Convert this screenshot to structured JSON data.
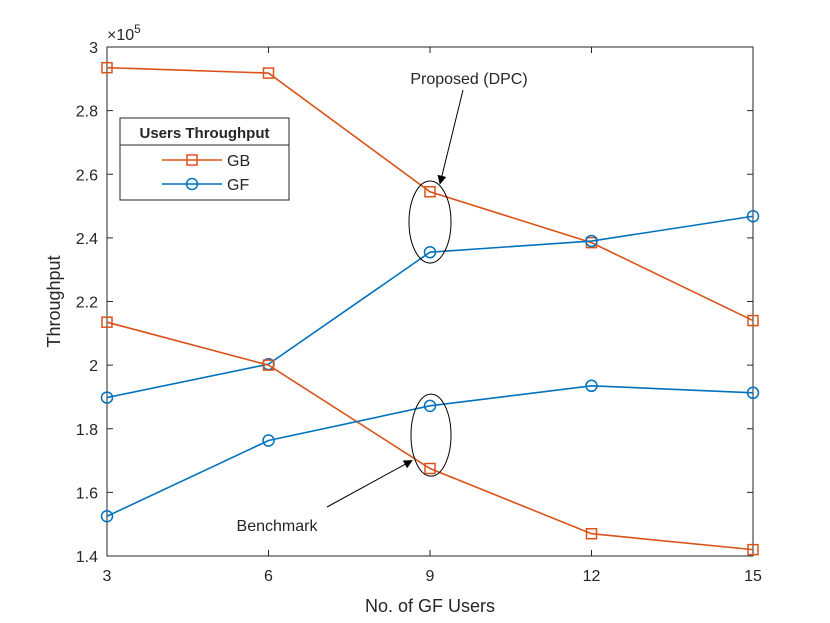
{
  "chart_data": {
    "type": "line",
    "x": [
      3,
      6,
      9,
      12,
      15
    ],
    "xlabel": "No. of GF Users",
    "ylabel": "Throughput",
    "xlim": [
      3,
      15
    ],
    "ylim": [
      140000,
      300000
    ],
    "xticks": [
      3,
      6,
      9,
      12,
      15
    ],
    "yticks": [
      140000,
      160000,
      180000,
      200000,
      220000,
      240000,
      260000,
      280000,
      300000
    ],
    "ytick_labels": [
      "1.4",
      "1.6",
      "1.8",
      "2",
      "2.2",
      "2.4",
      "2.6",
      "2.8",
      "3"
    ],
    "exponent_base": "×10",
    "exponent_power": "5",
    "grid": false,
    "legend": {
      "title": "Users Throughput",
      "placement": "top-left",
      "entries": [
        {
          "name": "GB",
          "marker": "square",
          "color": "#D95319"
        },
        {
          "name": "GF",
          "marker": "circle",
          "color": "#0072BD"
        }
      ]
    },
    "series": [
      {
        "name": "GB",
        "group": "Proposed (DPC)",
        "marker": "square",
        "color": "#D95319",
        "values": [
          293500,
          291800,
          254500,
          238500,
          214000
        ]
      },
      {
        "name": "GF",
        "group": "Proposed (DPC)",
        "marker": "circle",
        "color": "#0072BD",
        "values": [
          189800,
          200300,
          235500,
          239000,
          246800
        ]
      },
      {
        "name": "GB",
        "group": "Benchmark",
        "marker": "square",
        "color": "#D95319",
        "values": [
          213500,
          200000,
          167500,
          147000,
          142000
        ]
      },
      {
        "name": "GF",
        "group": "Benchmark",
        "marker": "circle",
        "color": "#0072BD",
        "values": [
          152500,
          176300,
          187200,
          193500,
          191300
        ]
      }
    ],
    "annotations": [
      {
        "text": "Proposed (DPC)",
        "target_x": 9,
        "target_y": 245000
      },
      {
        "text": "Benchmark",
        "target_x": 9,
        "target_y": 177500
      }
    ]
  }
}
